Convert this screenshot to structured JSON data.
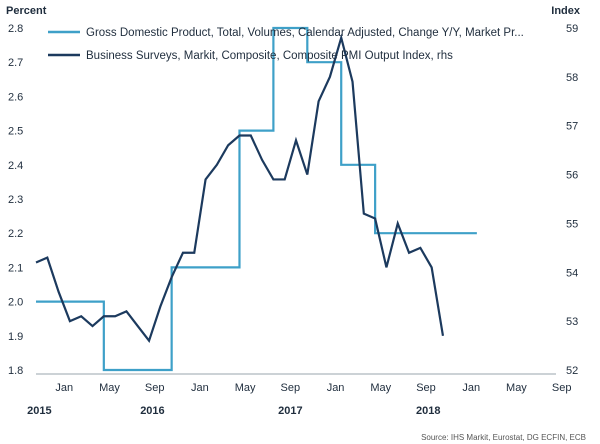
{
  "chart_data": {
    "type": "line",
    "left_axis_title": "Percent",
    "right_axis_title": "Index",
    "left_ylim": [
      1.8,
      2.8
    ],
    "right_ylim": [
      52,
      59
    ],
    "left_ticks": [
      "1.8",
      "1.9",
      "2.0",
      "2.1",
      "2.2",
      "2.3",
      "2.4",
      "2.5",
      "2.6",
      "2.7",
      "2.8"
    ],
    "right_ticks": [
      "52",
      "53",
      "54",
      "55",
      "56",
      "57",
      "58",
      "59"
    ],
    "x_range": [
      0,
      46
    ],
    "month_labels": [
      {
        "label": "Jan",
        "pos": 2.5
      },
      {
        "label": "May",
        "pos": 6.5
      },
      {
        "label": "Sep",
        "pos": 10.5
      },
      {
        "label": "Jan",
        "pos": 14.5
      },
      {
        "label": "May",
        "pos": 18.5
      },
      {
        "label": "Sep",
        "pos": 22.5
      },
      {
        "label": "Jan",
        "pos": 26.5
      },
      {
        "label": "May",
        "pos": 30.5
      },
      {
        "label": "Sep",
        "pos": 34.5
      },
      {
        "label": "Jan",
        "pos": 38.5
      },
      {
        "label": "May",
        "pos": 42.5
      },
      {
        "label": "Sep",
        "pos": 46.5
      }
    ],
    "year_labels": [
      {
        "label": "2015",
        "pos": 0.3
      },
      {
        "label": "2016",
        "pos": 10.3
      },
      {
        "label": "2017",
        "pos": 22.5
      },
      {
        "label": "2018",
        "pos": 34.7
      }
    ],
    "series": [
      {
        "name": "Gross Domestic Product, Total, Volumes, Calendar Adjusted, Change Y/Y, Market Pr...",
        "axis": "left",
        "color": "#3ea0c8",
        "step": true,
        "x": [
          0,
          3,
          6,
          9,
          12,
          15,
          18,
          21,
          24,
          27,
          30,
          33,
          36
        ],
        "values": [
          2.0,
          2.0,
          1.8,
          1.8,
          2.1,
          2.1,
          2.5,
          2.8,
          2.7,
          2.4,
          2.2,
          2.2,
          2.2
        ]
      },
      {
        "name": "Business Surveys, Markit, Composite, Composite PMI Output Index, rhs",
        "axis": "right",
        "color": "#1c3a5e",
        "step": false,
        "x": [
          0,
          1,
          2,
          3,
          4,
          5,
          6,
          7,
          8,
          9,
          10,
          11,
          12,
          13,
          14,
          15,
          16,
          17,
          18,
          19,
          20,
          21,
          22,
          23,
          24,
          25,
          26,
          27,
          28,
          29,
          30,
          31,
          32,
          33,
          34,
          35,
          36,
          37,
          38,
          39,
          40,
          41,
          42,
          43
        ],
        "values": [
          54.2,
          54.3,
          53.6,
          53.0,
          53.1,
          52.9,
          53.1,
          53.1,
          53.2,
          52.9,
          52.6,
          53.3,
          53.9,
          54.4,
          54.4,
          55.9,
          56.2,
          56.6,
          56.8,
          56.8,
          56.3,
          55.9,
          55.9,
          56.7,
          56.0,
          57.5,
          58.0,
          58.8,
          57.9,
          55.2,
          55.1,
          54.1,
          55.0,
          54.4,
          54.5,
          54.1,
          52.7,
          null,
          null,
          null,
          null,
          null,
          null,
          null
        ]
      }
    ],
    "source": "Source: IHS Markit, Eurostat, DG ECFIN, ECB"
  }
}
